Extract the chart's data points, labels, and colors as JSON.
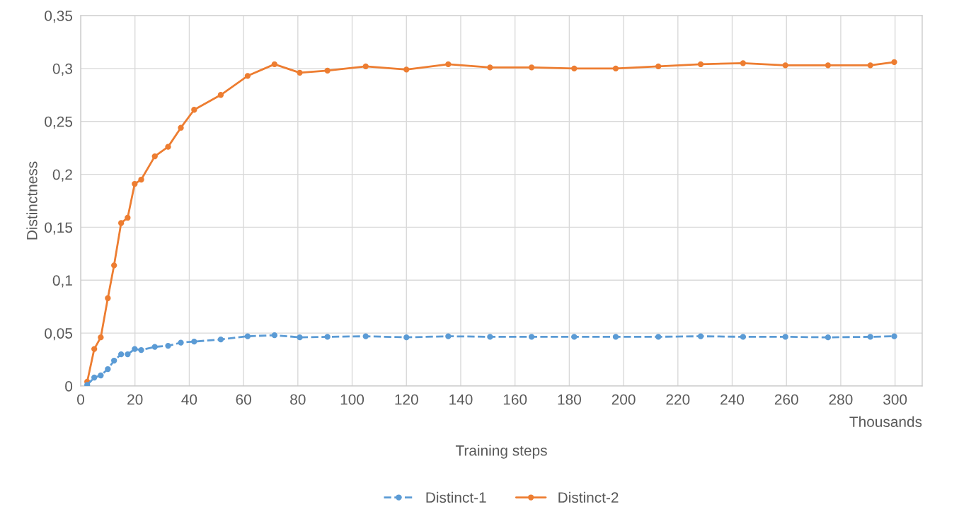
{
  "chart_data": {
    "type": "line",
    "xlabel": "Training steps",
    "ylabel": "Distinctness",
    "annotations": [
      "Thousands"
    ],
    "x": [
      2.4,
      5.0,
      7.4,
      10.0,
      12.3,
      14.9,
      17.3,
      19.9,
      22.3,
      27.3,
      32.2,
      36.9,
      41.8,
      51.6,
      61.5,
      71.4,
      80.7,
      90.9,
      105,
      120,
      135.4,
      150.8,
      166.1,
      181.8,
      197.1,
      212.8,
      228.4,
      244,
      259.6,
      275.3,
      290.9,
      299.7
    ],
    "series": [
      {
        "name": "Distinct-1",
        "color": "#5b9bd5",
        "line_style": "dashed",
        "values": [
          0.001,
          0.008,
          0.01,
          0.016,
          0.024,
          0.03,
          0.03,
          0.035,
          0.034,
          0.037,
          0.038,
          0.041,
          0.042,
          0.044,
          0.047,
          0.048,
          0.046,
          0.0465,
          0.047,
          0.046,
          0.047,
          0.0465,
          0.0465,
          0.0465,
          0.0465,
          0.0465,
          0.047,
          0.0465,
          0.0465,
          0.046,
          0.0465,
          0.047
        ]
      },
      {
        "name": "Distinct-2",
        "color": "#ed7d31",
        "line_style": "solid",
        "values": [
          0.004,
          0.035,
          0.046,
          0.083,
          0.114,
          0.154,
          0.159,
          0.191,
          0.195,
          0.217,
          0.226,
          0.244,
          0.261,
          0.275,
          0.293,
          0.304,
          0.296,
          0.298,
          0.302,
          0.299,
          0.304,
          0.301,
          0.301,
          0.3,
          0.3,
          0.302,
          0.304,
          0.305,
          0.303,
          0.303,
          0.303,
          0.306
        ]
      }
    ],
    "marker": "circle",
    "grid": true,
    "legend": "bottom",
    "xlim": [
      0,
      310
    ],
    "xticks": [
      0,
      20,
      40,
      60,
      80,
      100,
      120,
      140,
      160,
      180,
      200,
      220,
      240,
      260,
      280,
      300
    ],
    "ylim": [
      0,
      0.35
    ],
    "yticks": [
      0,
      {
        "value": 0.05,
        "label": "0,05"
      },
      {
        "value": 0.1,
        "label": "0,1"
      },
      {
        "value": 0.15,
        "label": "0,15"
      },
      {
        "value": 0.2,
        "label": "0,2"
      },
      {
        "value": 0.25,
        "label": "0,25"
      },
      {
        "value": 0.3,
        "label": "0,3"
      },
      {
        "value": 0.35,
        "label": "0,35"
      }
    ]
  }
}
